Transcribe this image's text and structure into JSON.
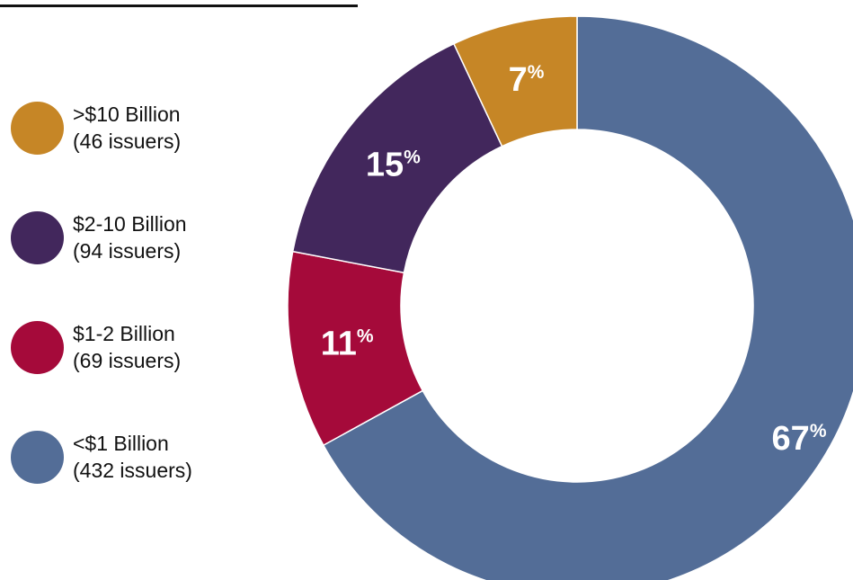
{
  "chart_data": {
    "type": "pie",
    "donut": true,
    "title": "",
    "slices": [
      {
        "label": "<$1 Billion",
        "issuers": "(432 issuers)",
        "value": 67,
        "display": "67",
        "unit": "%",
        "color": "#536D97"
      },
      {
        "label": "$1-2 Billion",
        "issuers": "(69 issuers)",
        "value": 11,
        "display": "11",
        "unit": "%",
        "color": "#A50A3A"
      },
      {
        "label": "$2-10 Billion",
        "issuers": "(94 issuers)",
        "value": 15,
        "display": "15",
        "unit": "%",
        "color": "#42275C"
      },
      {
        "label": ">$10 Billion",
        "issuers": "(46 issuers)",
        "value": 7,
        "display": "7",
        "unit": "%",
        "color": "#C68626"
      }
    ],
    "legend_order": [
      3,
      2,
      1,
      0
    ],
    "legend_placement": "left"
  }
}
